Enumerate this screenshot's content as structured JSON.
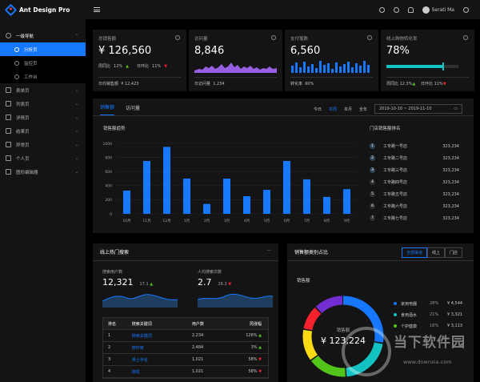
{
  "app": {
    "title": "Ant Design Pro"
  },
  "header": {
    "user_name": "Serati Ma"
  },
  "sidebar": {
    "groups": [
      {
        "label": "一级导航",
        "open": true,
        "children": [
          {
            "label": "分析页",
            "active": true
          },
          {
            "label": "监控页"
          },
          {
            "label": "工作台"
          }
        ]
      },
      {
        "label": "表单页"
      },
      {
        "label": "列表页"
      },
      {
        "label": "详情页"
      },
      {
        "label": "结果页"
      },
      {
        "label": "异常页"
      },
      {
        "label": "个人页"
      },
      {
        "label": "图形编辑器"
      }
    ]
  },
  "stats": [
    {
      "title": "总销售额",
      "value": "¥ 126,560",
      "mid_a_label": "周同比",
      "mid_a_value": "12%",
      "mid_b_label": "日环比",
      "mid_b_value": "11%",
      "foot_label": "日均销售额",
      "foot_value": "¥ 12,423"
    },
    {
      "title": "访问量",
      "value": "8,846",
      "foot_label": "日访问量",
      "foot_value": "1,234"
    },
    {
      "title": "支付笔数",
      "value": "6,560",
      "foot_label": "转化率",
      "foot_value": "60%"
    },
    {
      "title": "线上购物转化率",
      "value": "78%",
      "progress": 0.78,
      "mid_a_label": "周同比",
      "mid_a_value": "12.3%",
      "mid_b_label": "日环比",
      "mid_b_value": "11%"
    }
  ],
  "sales": {
    "tabs": [
      "销售额",
      "访问量"
    ],
    "ranges": [
      "今日",
      "本周",
      "本月",
      "全年"
    ],
    "selected_range": "本周",
    "date_range": "2019-10-10 ~ 2019-11-10",
    "chart_title": "销售额趋势",
    "rank_title": "门店销售额排名",
    "rank": [
      {
        "n": "1",
        "name": "工专路一号店",
        "value": "323,234"
      },
      {
        "n": "2",
        "name": "工专路二号店",
        "value": "323,234"
      },
      {
        "n": "3",
        "name": "工专路三号店",
        "value": "323,234"
      },
      {
        "n": "4",
        "name": "工专路四号店",
        "value": "323,234"
      },
      {
        "n": "5",
        "name": "工专路五号店",
        "value": "323,234"
      },
      {
        "n": "6",
        "name": "工专路六号店",
        "value": "323,234"
      },
      {
        "n": "7",
        "name": "工专路七号店",
        "value": "323,234"
      }
    ]
  },
  "chart_data": {
    "type": "bar",
    "categories": [
      "10月",
      "11月",
      "12月",
      "1月",
      "2月",
      "3月",
      "4月",
      "5月",
      "6月",
      "7月",
      "8月",
      "9月"
    ],
    "values": [
      330,
      750,
      950,
      500,
      140,
      500,
      250,
      340,
      750,
      490,
      240,
      350
    ],
    "ylim": [
      0,
      1000
    ],
    "yticks": [
      "0",
      "200",
      "400",
      "600",
      "800",
      "1000"
    ],
    "color": "#1677ff"
  },
  "search": {
    "title": "线上热门搜索",
    "users_label": "搜索用户数",
    "users_value": "12,321",
    "users_rate": "17.1",
    "avg_label": "人均搜索次数",
    "avg_value": "2.7",
    "avg_rate": "26.2",
    "columns": [
      "排名",
      "搜索关键词",
      "用户数",
      "周涨幅"
    ],
    "rows": [
      {
        "rank": "1",
        "keyword": "搜索关键词",
        "users": "2,234",
        "change": "126%",
        "dir": "up"
      },
      {
        "rank": "2",
        "keyword": "搜作家",
        "users": "2,484",
        "change": "3%",
        "dir": "up"
      },
      {
        "rank": "3",
        "keyword": "男士手包",
        "users": "1,021",
        "change": "58%",
        "dir": "down"
      },
      {
        "rank": "4",
        "keyword": "搜机",
        "users": "1,021",
        "change": "58%",
        "dir": "down"
      }
    ]
  },
  "category": {
    "title": "销售额类别占比",
    "segments": [
      "全部渠道",
      "线上",
      "门店"
    ],
    "selected_segment": "全部渠道",
    "subtitle": "销售额",
    "center_label": "销售额",
    "center_value": "¥ 123,224",
    "legend": [
      {
        "name": "家用电器",
        "pct": "28%",
        "value": "¥ 4,544",
        "color": "#1677ff"
      },
      {
        "name": "食用酒水",
        "pct": "21%",
        "value": "¥ 3,321",
        "color": "#13c2c2"
      },
      {
        "name": "个护健康",
        "pct": "16%",
        "value": "¥ 3,113",
        "color": "#52c41a"
      }
    ],
    "donut": [
      0.28,
      0.21,
      0.16,
      0.13,
      0.1,
      0.12
    ],
    "donut_colors": [
      "#1677ff",
      "#13c2c2",
      "#52c41a",
      "#fadb14",
      "#f5222d",
      "#722ed1"
    ]
  },
  "watermark": {
    "text": "当下软件园",
    "url": "www.downxia.com"
  }
}
